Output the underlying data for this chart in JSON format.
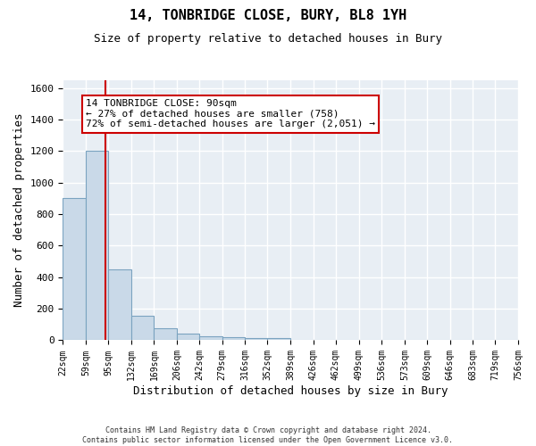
{
  "title": "14, TONBRIDGE CLOSE, BURY, BL8 1YH",
  "subtitle": "Size of property relative to detached houses in Bury",
  "xlabel": "Distribution of detached houses by size in Bury",
  "ylabel": "Number of detached properties",
  "footnote": "Contains HM Land Registry data © Crown copyright and database right 2024.\nContains public sector information licensed under the Open Government Licence v3.0.",
  "bar_edges": [
    22,
    59,
    95,
    132,
    169,
    206,
    242,
    279,
    316,
    352,
    389,
    426,
    462,
    499,
    536,
    573,
    609,
    646,
    683,
    719,
    756
  ],
  "bar_values": [
    900,
    1200,
    450,
    155,
    75,
    40,
    25,
    20,
    15,
    12,
    0,
    0,
    0,
    0,
    0,
    0,
    0,
    0,
    0,
    0
  ],
  "bar_color": "#c9d9e8",
  "bar_edge_color": "#7ba3c0",
  "bg_color": "#e8eef4",
  "grid_color": "#ffffff",
  "property_size": 90,
  "red_line_color": "#cc0000",
  "annotation_text": "14 TONBRIDGE CLOSE: 90sqm\n← 27% of detached houses are smaller (758)\n72% of semi-detached houses are larger (2,051) →",
  "annotation_box_color": "#ffffff",
  "annotation_box_edge": "#cc0000",
  "ylim": [
    0,
    1650
  ],
  "yticks": [
    0,
    200,
    400,
    600,
    800,
    1000,
    1200,
    1400,
    1600
  ]
}
